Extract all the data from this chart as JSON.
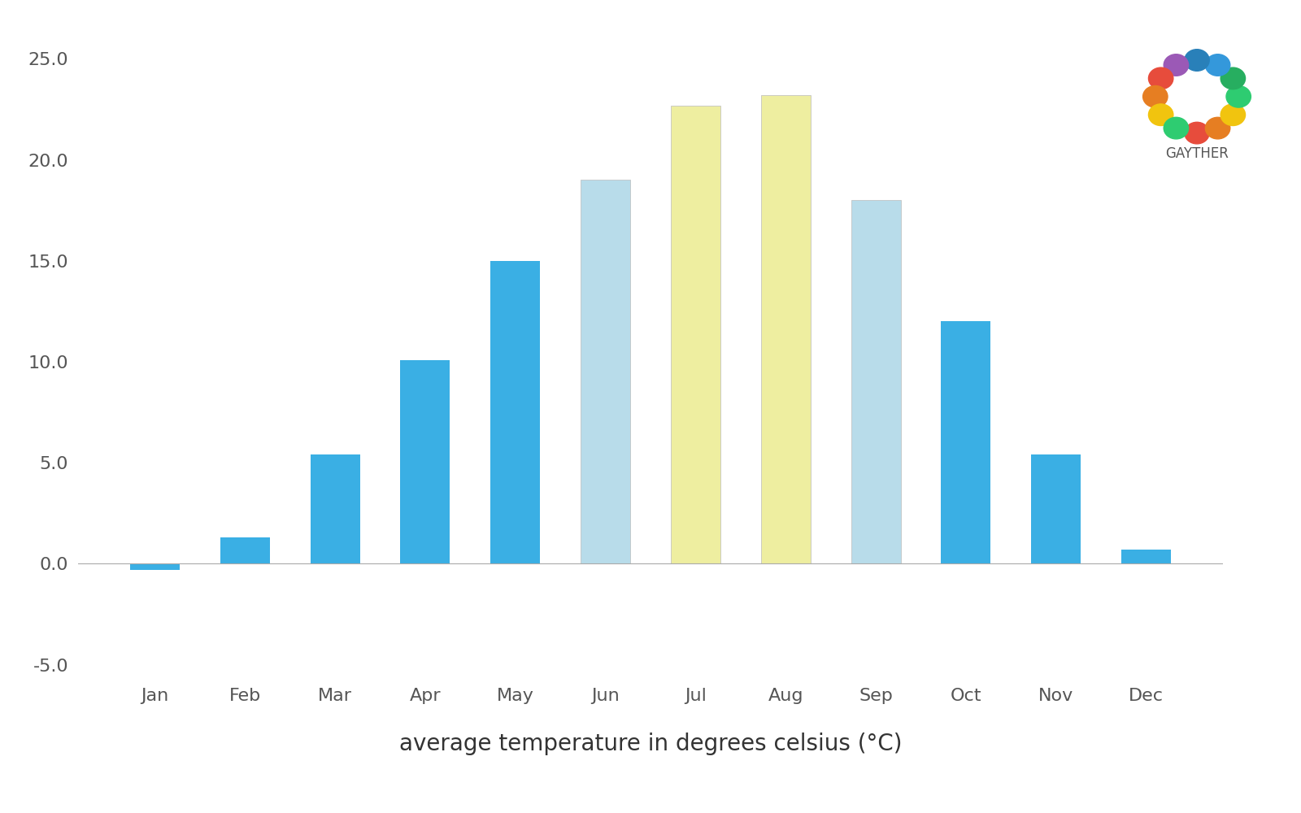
{
  "months": [
    "Jan",
    "Feb",
    "Mar",
    "Apr",
    "May",
    "Jun",
    "Jul",
    "Aug",
    "Sep",
    "Oct",
    "Nov",
    "Dec"
  ],
  "values": [
    -0.3,
    1.3,
    5.4,
    10.1,
    15.0,
    19.0,
    22.7,
    23.2,
    18.0,
    12.0,
    5.4,
    0.7
  ],
  "bar_colors": [
    "#3aafe4",
    "#3aafe4",
    "#3aafe4",
    "#3aafe4",
    "#3aafe4",
    "#b8dcea",
    "#eeeea0",
    "#eeeea0",
    "#b8dcea",
    "#3aafe4",
    "#3aafe4",
    "#3aafe4"
  ],
  "title": "average temperature in degrees celsius (°C)",
  "title_fontsize": 20,
  "ylim": [
    -5.5,
    25.5
  ],
  "yticks": [
    -5.0,
    0.0,
    5.0,
    10.0,
    15.0,
    20.0,
    25.0
  ],
  "ytick_labels": [
    "-5.0",
    "0.0",
    "5.0",
    "10.0",
    "15.0",
    "20.0",
    "25.0"
  ],
  "background_color": "#ffffff",
  "bar_width": 0.55,
  "zero_line_color": "#aaaaaa",
  "gayther_text": "GAYTHER",
  "gayther_fontsize": 12,
  "dot_colors": [
    "#e74c3c",
    "#e67e22",
    "#f1c40f",
    "#2ecc71",
    "#27ae60",
    "#3498db",
    "#2980b9",
    "#9b59b6",
    "#e74c3c",
    "#e67e22",
    "#f1c40f",
    "#2ecc71"
  ],
  "tick_fontsize": 16,
  "xlabel_fontsize": 20
}
